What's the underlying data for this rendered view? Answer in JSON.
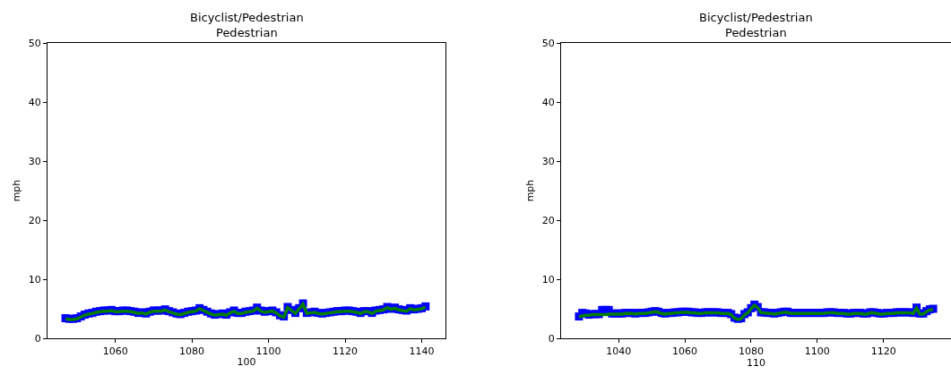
{
  "chart_data": [
    {
      "type": "line",
      "title": "Bicyclist/Pedestrian\nPedestrian",
      "xlabel": "100",
      "ylabel": "mph",
      "xlim": [
        1042.3,
        1146.2
      ],
      "xticks": [
        1060,
        1080,
        1100,
        1120,
        1140
      ],
      "ylim": [
        0,
        50
      ],
      "yticks": [
        0,
        10,
        20,
        30,
        40,
        50
      ],
      "grid": false,
      "x": [
        1047,
        1048,
        1049,
        1050,
        1051,
        1052,
        1053,
        1054,
        1055,
        1056,
        1057,
        1058,
        1059,
        1060,
        1061,
        1062,
        1063,
        1064,
        1065,
        1066,
        1067,
        1068,
        1069,
        1070,
        1071,
        1072,
        1073,
        1074,
        1075,
        1076,
        1077,
        1078,
        1079,
        1080,
        1081,
        1082,
        1083,
        1084,
        1085,
        1086,
        1087,
        1088,
        1089,
        1090,
        1091,
        1092,
        1093,
        1094,
        1095,
        1096,
        1097,
        1098,
        1099,
        1100,
        1101,
        1102,
        1103,
        1104,
        1105,
        1106,
        1107,
        1108,
        1109,
        1110,
        1111,
        1112,
        1113,
        1114,
        1115,
        1116,
        1117,
        1118,
        1119,
        1120,
        1121,
        1122,
        1123,
        1124,
        1125,
        1126,
        1127,
        1128,
        1129,
        1130,
        1131,
        1132,
        1133,
        1134,
        1135,
        1136,
        1137,
        1138,
        1139,
        1140,
        1141
      ],
      "series": [
        {
          "type": "scatter",
          "marker": "square",
          "color": "#0000ff",
          "values": [
            3.4,
            3.3,
            3.3,
            3.4,
            3.7,
            4.0,
            4.2,
            4.3,
            4.5,
            4.6,
            4.7,
            4.7,
            4.8,
            4.6,
            4.6,
            4.7,
            4.7,
            4.6,
            4.5,
            4.3,
            4.4,
            4.2,
            4.5,
            4.7,
            4.7,
            4.7,
            4.9,
            4.6,
            4.4,
            4.2,
            4.1,
            4.3,
            4.5,
            4.6,
            4.7,
            5.1,
            4.8,
            4.5,
            4.2,
            4.0,
            4.1,
            4.2,
            4.0,
            4.4,
            4.7,
            4.3,
            4.3,
            4.5,
            4.6,
            4.7,
            5.2,
            4.7,
            4.5,
            4.6,
            4.7,
            4.4,
            3.9,
            3.7,
            5.3,
            4.8,
            4.3,
            5.1,
            5.9,
            4.3,
            4.4,
            4.5,
            4.3,
            4.2,
            4.3,
            4.4,
            4.5,
            4.6,
            4.6,
            4.7,
            4.7,
            4.6,
            4.5,
            4.3,
            4.6,
            4.6,
            4.3,
            4.7,
            4.8,
            4.9,
            5.3,
            5.0,
            5.2,
            4.9,
            4.8,
            4.7,
            5.1,
            4.9,
            5.0,
            5.1,
            5.4
          ]
        },
        {
          "color": "#008000",
          "values": [
            3.3,
            3.2,
            3.2,
            3.3,
            3.6,
            3.9,
            4.1,
            4.2,
            4.4,
            4.5,
            4.6,
            4.6,
            4.7,
            4.5,
            4.5,
            4.6,
            4.6,
            4.5,
            4.4,
            4.2,
            4.3,
            4.1,
            4.4,
            4.6,
            4.6,
            4.6,
            4.8,
            4.5,
            4.3,
            4.1,
            4.0,
            4.2,
            4.4,
            4.5,
            4.6,
            5.0,
            4.7,
            4.4,
            4.1,
            3.9,
            4.0,
            4.1,
            3.9,
            4.3,
            4.6,
            4.2,
            4.2,
            4.4,
            4.5,
            4.6,
            5.1,
            4.6,
            4.4,
            4.5,
            4.6,
            4.3,
            3.8,
            3.6,
            5.2,
            4.7,
            4.2,
            5.0,
            5.8,
            4.2,
            4.3,
            4.4,
            4.2,
            4.1,
            4.2,
            4.3,
            4.4,
            4.5,
            4.5,
            4.6,
            4.6,
            4.5,
            4.4,
            4.2,
            4.5,
            4.5,
            4.2,
            4.6,
            4.7,
            4.8,
            5.2,
            4.9,
            5.1,
            4.8,
            4.7,
            4.6,
            5.0,
            4.8,
            4.9,
            5.0,
            5.3
          ]
        }
      ]
    },
    {
      "type": "line",
      "title": "Bicyclist/Pedestrian\nPedestrian",
      "xlabel": "110",
      "ylabel": "mph",
      "xlim": [
        1022.6,
        1140.4
      ],
      "xticks": [
        1040,
        1060,
        1080,
        1100,
        1120
      ],
      "ylim": [
        0,
        50
      ],
      "yticks": [
        0,
        10,
        20,
        30,
        40,
        50
      ],
      "grid": false,
      "x": [
        1028,
        1029,
        1030,
        1031,
        1032,
        1033,
        1034,
        1035,
        1036,
        1037,
        1038,
        1039,
        1040,
        1041,
        1042,
        1043,
        1044,
        1045,
        1046,
        1047,
        1048,
        1049,
        1050,
        1051,
        1052,
        1053,
        1054,
        1055,
        1056,
        1057,
        1058,
        1059,
        1060,
        1061,
        1062,
        1063,
        1064,
        1065,
        1066,
        1067,
        1068,
        1069,
        1070,
        1071,
        1072,
        1073,
        1074,
        1075,
        1076,
        1077,
        1078,
        1079,
        1080,
        1081,
        1082,
        1083,
        1084,
        1085,
        1086,
        1087,
        1088,
        1089,
        1090,
        1091,
        1092,
        1093,
        1094,
        1095,
        1096,
        1097,
        1098,
        1099,
        1100,
        1101,
        1102,
        1103,
        1104,
        1105,
        1106,
        1107,
        1108,
        1109,
        1110,
        1111,
        1112,
        1113,
        1114,
        1115,
        1116,
        1117,
        1118,
        1119,
        1120,
        1121,
        1122,
        1123,
        1124,
        1125,
        1126,
        1127,
        1128,
        1129,
        1130,
        1131,
        1132,
        1133,
        1134,
        1135
      ],
      "series": [
        {
          "type": "scatter",
          "marker": "square",
          "color": "#0000ff",
          "values": [
            3.7,
            4.3,
            4.2,
            4.0,
            4.1,
            4.1,
            4.1,
            4.8,
            4.8,
            4.8,
            4.2,
            4.2,
            4.2,
            4.2,
            4.3,
            4.3,
            4.3,
            4.2,
            4.3,
            4.3,
            4.3,
            4.4,
            4.5,
            4.6,
            4.5,
            4.3,
            4.2,
            4.3,
            4.3,
            4.4,
            4.4,
            4.5,
            4.5,
            4.5,
            4.4,
            4.4,
            4.3,
            4.3,
            4.4,
            4.4,
            4.4,
            4.4,
            4.4,
            4.3,
            4.3,
            4.3,
            4.1,
            3.5,
            3.3,
            3.4,
            4.1,
            4.4,
            5.1,
            5.7,
            5.3,
            4.4,
            4.4,
            4.3,
            4.3,
            4.2,
            4.3,
            4.4,
            4.5,
            4.5,
            4.3,
            4.3,
            4.3,
            4.3,
            4.3,
            4.3,
            4.3,
            4.3,
            4.3,
            4.3,
            4.3,
            4.4,
            4.4,
            4.4,
            4.3,
            4.3,
            4.3,
            4.2,
            4.2,
            4.3,
            4.3,
            4.3,
            4.2,
            4.2,
            4.4,
            4.4,
            4.3,
            4.2,
            4.2,
            4.3,
            4.3,
            4.3,
            4.4,
            4.4,
            4.4,
            4.4,
            4.4,
            4.3,
            5.2,
            4.2,
            4.2,
            4.6,
            4.9,
            5.0
          ]
        },
        {
          "color": "#008000",
          "values": [
            3.6,
            3.8,
            3.9,
            3.9,
            4.0,
            4.0,
            4.0,
            4.0,
            4.0,
            4.1,
            4.1,
            4.1,
            4.1,
            4.1,
            4.2,
            4.2,
            4.2,
            4.1,
            4.2,
            4.2,
            4.2,
            4.3,
            4.4,
            4.5,
            4.4,
            4.2,
            4.1,
            4.2,
            4.2,
            4.3,
            4.3,
            4.4,
            4.4,
            4.4,
            4.3,
            4.3,
            4.2,
            4.2,
            4.3,
            4.3,
            4.3,
            4.3,
            4.3,
            4.2,
            4.2,
            4.2,
            4.0,
            3.4,
            3.2,
            3.3,
            4.0,
            4.3,
            5.0,
            5.6,
            5.2,
            4.3,
            4.3,
            4.2,
            4.2,
            4.1,
            4.2,
            4.3,
            4.4,
            4.4,
            4.2,
            4.2,
            4.2,
            4.2,
            4.2,
            4.2,
            4.2,
            4.2,
            4.2,
            4.2,
            4.2,
            4.3,
            4.3,
            4.3,
            4.2,
            4.2,
            4.2,
            4.1,
            4.1,
            4.2,
            4.2,
            4.2,
            4.1,
            4.1,
            4.3,
            4.3,
            4.2,
            4.1,
            4.1,
            4.2,
            4.2,
            4.2,
            4.3,
            4.3,
            4.3,
            4.3,
            4.3,
            4.2,
            5.1,
            4.1,
            4.1,
            4.5,
            4.8,
            4.9
          ]
        }
      ]
    }
  ]
}
